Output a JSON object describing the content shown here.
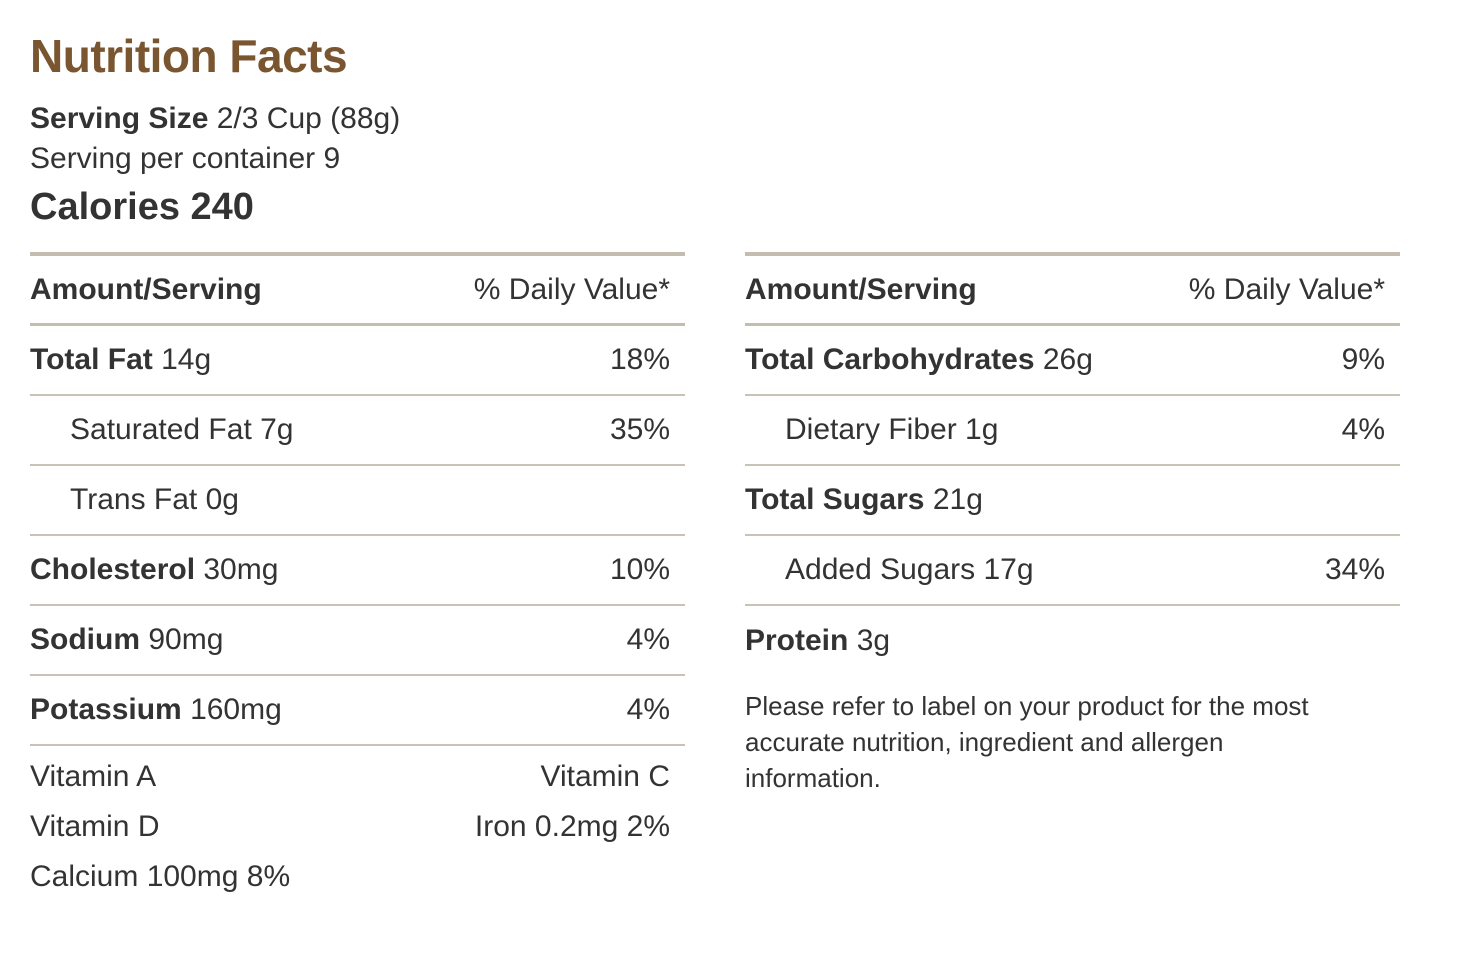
{
  "title": "Nutrition Facts",
  "serving_size_label": "Serving Size",
  "serving_size_value": "2/3 Cup (88g)",
  "servings_per_container": "Serving per container 9",
  "calories": "Calories 240",
  "header": {
    "amount": "Amount/Serving",
    "daily_value": "% Daily Value*"
  },
  "left_rows": [
    {
      "name": "Total Fat",
      "amount": "14g",
      "dv": "18%"
    },
    {
      "name": "Saturated Fat 7g",
      "amount": "",
      "dv": "35%"
    },
    {
      "name": "Trans Fat 0g",
      "amount": "",
      "dv": ""
    },
    {
      "name": "Cholesterol",
      "amount": "30mg",
      "dv": "10%"
    },
    {
      "name": "Sodium",
      "amount": "90mg",
      "dv": "4%"
    },
    {
      "name": "Potassium",
      "amount": "160mg",
      "dv": "4%"
    }
  ],
  "vitamins": {
    "vitamin_a": "Vitamin A",
    "vitamin_c": "Vitamin C",
    "vitamin_d": "Vitamin D",
    "iron": "Iron 0.2mg 2%",
    "calcium": "Calcium 100mg 8%"
  },
  "right_rows": [
    {
      "name": "Total Carbohydrates",
      "amount": "26g",
      "dv": "9%"
    },
    {
      "name": "Dietary Fiber 1g",
      "amount": "",
      "dv": "4%"
    },
    {
      "name": "Total Sugars",
      "amount": "21g",
      "dv": ""
    },
    {
      "name": "Added Sugars 17g",
      "amount": "",
      "dv": "34%"
    },
    {
      "name": "Protein",
      "amount": "3g",
      "dv": ""
    }
  ],
  "disclaimer": "Please refer to label on your product for the most accurate nutrition, ingredient and allergen information.",
  "colors": {
    "title": "#7a5630",
    "rule": "#c4bcae",
    "text": "#333333"
  }
}
